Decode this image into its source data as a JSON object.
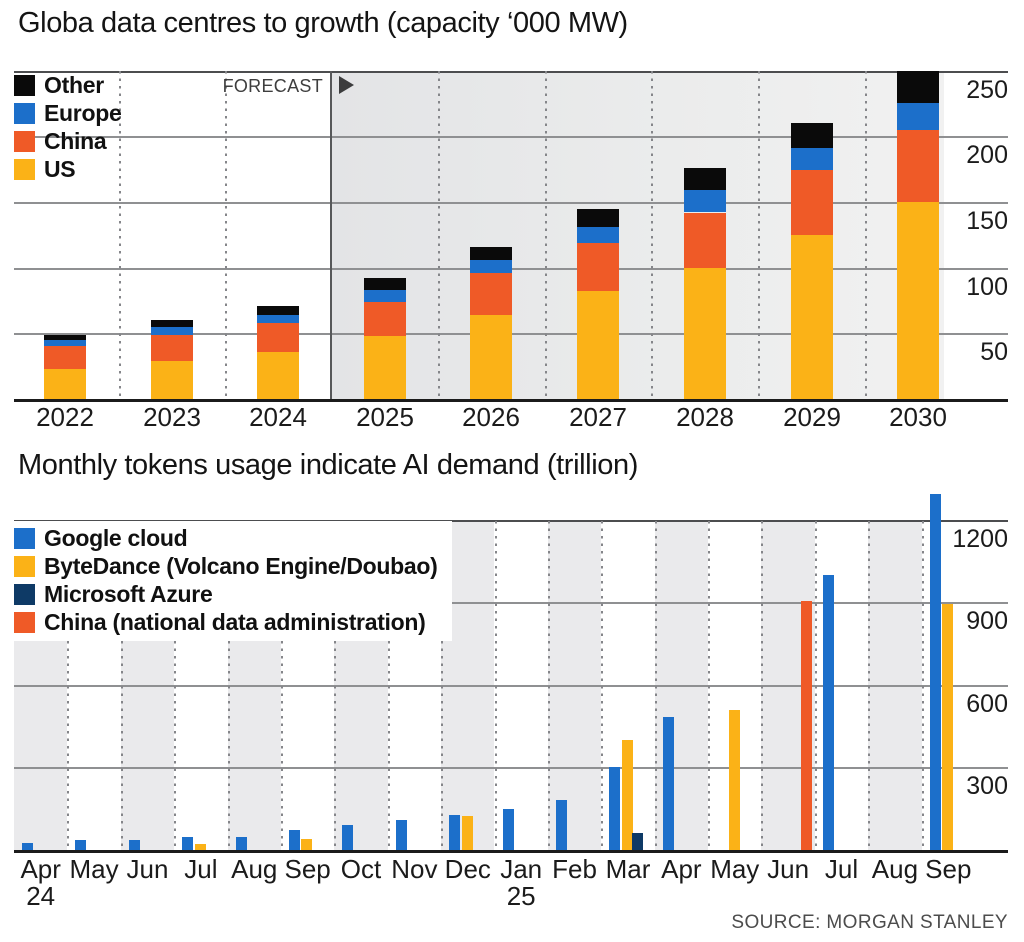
{
  "source": "SOURCE: MORGAN STANLEY",
  "chart_data": [
    {
      "type": "bar",
      "stacked": true,
      "title": "Globa data centres to growth (capacity ‘000 MW)",
      "categories": [
        "2022",
        "2023",
        "2024",
        "2025",
        "2026",
        "2027",
        "2028",
        "2029",
        "2030"
      ],
      "series": [
        {
          "name": "US",
          "color": "#fbb217",
          "values": [
            23,
            29,
            36,
            48,
            64,
            82,
            100,
            125,
            150
          ]
        },
        {
          "name": "China",
          "color": "#ef5a27",
          "values": [
            17,
            20,
            22,
            26,
            32,
            37,
            42,
            49,
            55
          ]
        },
        {
          "name": "Europe",
          "color": "#1c6fca",
          "values": [
            5,
            6,
            6,
            9,
            10,
            12,
            17,
            17,
            20
          ]
        },
        {
          "name": "Other",
          "color": "#0a0a0a",
          "values": [
            4,
            5,
            7,
            9,
            10,
            14,
            17,
            19,
            25
          ]
        }
      ],
      "totals": [
        49,
        60,
        71,
        92,
        116,
        145,
        176,
        210,
        250
      ],
      "legend": [
        {
          "label": "Other",
          "color": "#0a0a0a"
        },
        {
          "label": "Europe",
          "color": "#1c6fca"
        },
        {
          "label": "China",
          "color": "#ef5a27"
        },
        {
          "label": "US",
          "color": "#fbb217"
        }
      ],
      "yticks": [
        50,
        100,
        150,
        200,
        250
      ],
      "ylim": [
        0,
        252
      ],
      "legend_position": "top-left",
      "grid": "horizontal-solid, vertical-dotted-year-separators",
      "forecast": {
        "label": "FORECAST",
        "from_category": "2025"
      }
    },
    {
      "type": "bar",
      "grouped": true,
      "title": "Monthly tokens usage indicate AI demand (trillion)",
      "categories": [
        "Apr",
        "May",
        "Jun",
        "Jul",
        "Aug",
        "Sep",
        "Oct",
        "Nov",
        "Dec",
        "Jan",
        "Feb",
        "Mar",
        "Apr",
        "May",
        "Jun",
        "Jul",
        "Aug",
        "Sep"
      ],
      "category_sublabels": [
        {
          "index": 0,
          "text": "24"
        },
        {
          "index": 9,
          "text": "25"
        }
      ],
      "series": [
        {
          "name": "Google cloud",
          "color": "#1c6fca",
          "values": [
            25,
            35,
            35,
            48,
            48,
            72,
            92,
            108,
            128,
            150,
            180,
            300,
            485,
            null,
            null,
            1000,
            null,
            1295
          ]
        },
        {
          "name": "ByteDance (Volcano Engine/Doubao)",
          "color": "#fbb217",
          "values": [
            null,
            null,
            null,
            22,
            null,
            40,
            null,
            null,
            124,
            null,
            null,
            400,
            null,
            510,
            null,
            null,
            null,
            895
          ]
        },
        {
          "name": "Microsoft Azure",
          "color": "#0e3a66",
          "values": [
            null,
            null,
            null,
            null,
            null,
            null,
            null,
            null,
            null,
            null,
            null,
            62,
            null,
            null,
            null,
            null,
            null,
            null
          ]
        },
        {
          "name": "China (national data administration)",
          "color": "#ef5a27",
          "values": [
            null,
            null,
            null,
            null,
            null,
            null,
            null,
            null,
            null,
            null,
            null,
            null,
            null,
            null,
            905,
            null,
            null,
            null
          ]
        }
      ],
      "yticks": [
        300,
        600,
        900,
        1200
      ],
      "ylim": [
        0,
        1308
      ],
      "legend_position": "top-left",
      "grid": "horizontal-solid, vertical-dotted-month-separators",
      "shaded_bands": "alternate months starting Apr 24"
    }
  ]
}
